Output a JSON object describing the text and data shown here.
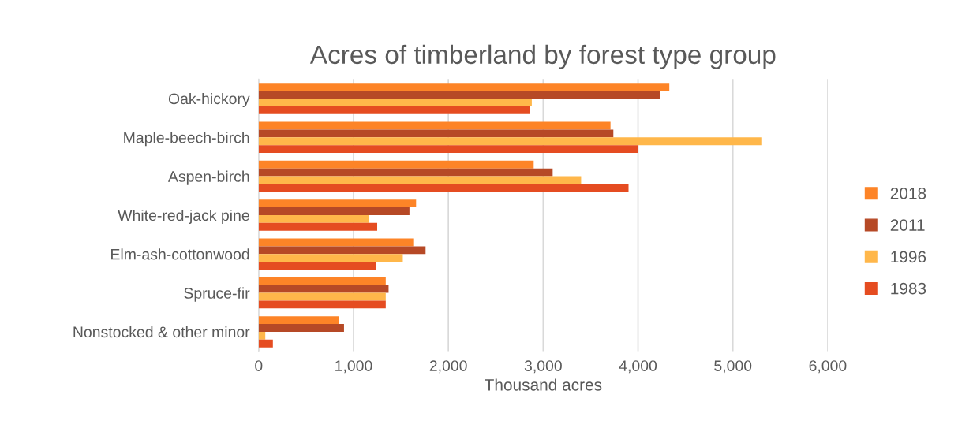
{
  "chart_data": {
    "type": "bar",
    "orientation": "horizontal",
    "title": "Acres of timberland by forest type group",
    "xlabel": "Thousand acres",
    "categories": [
      "Oak-hickory",
      "Maple-beech-birch",
      "Aspen-birch",
      "White-red-jack pine",
      "Elm-ash-cottonwood",
      "Spruce-fir",
      "Nonstocked & other minor"
    ],
    "series": [
      {
        "name": "2018",
        "color": "#fd8427",
        "values": [
          4330,
          3710,
          2900,
          1660,
          1630,
          1340,
          850
        ]
      },
      {
        "name": "2011",
        "color": "#b64926",
        "values": [
          4230,
          3740,
          3100,
          1590,
          1760,
          1370,
          900
        ]
      },
      {
        "name": "1996",
        "color": "#ffb74a",
        "values": [
          2880,
          5300,
          3400,
          1160,
          1520,
          1340,
          70
        ]
      },
      {
        "name": "1983",
        "color": "#e54c21",
        "values": [
          2860,
          4000,
          3900,
          1250,
          1240,
          1340,
          150
        ]
      }
    ],
    "xlim": [
      0,
      6000
    ],
    "xticks": [
      {
        "value": 0,
        "label": "0"
      },
      {
        "value": 1000,
        "label": "1,000"
      },
      {
        "value": 2000,
        "label": "2,000"
      },
      {
        "value": 3000,
        "label": "3,000"
      },
      {
        "value": 4000,
        "label": "4,000"
      },
      {
        "value": 5000,
        "label": "5,000"
      },
      {
        "value": 6000,
        "label": "6,000"
      }
    ],
    "grid": "x",
    "legend": "right"
  }
}
